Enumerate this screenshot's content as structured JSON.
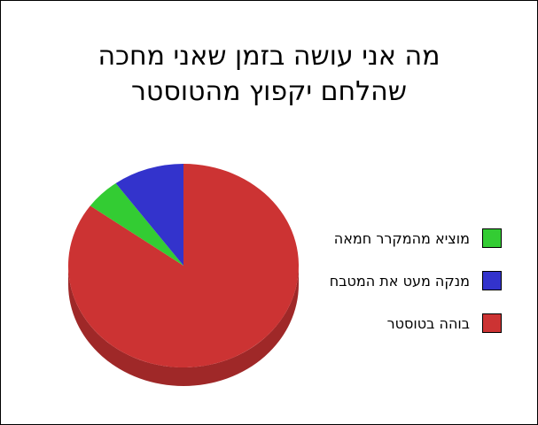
{
  "chart_data": {
    "type": "pie",
    "title_lines": [
      "מה אני עושה בזמן שאני מחכה",
      "שהלחם יקפוץ מהטוסטר"
    ],
    "legend_position": "right",
    "slices": [
      {
        "label": "בוהה בטוסטר",
        "value": 85,
        "color": "#cc3333"
      },
      {
        "label": "מוציא מהמקרר חמאה",
        "value": 5,
        "color": "#33cc33"
      },
      {
        "label": "מנקה מעט את המטבח",
        "value": 10,
        "color": "#3333cc"
      }
    ],
    "legend_order": [
      1,
      2,
      0
    ]
  }
}
